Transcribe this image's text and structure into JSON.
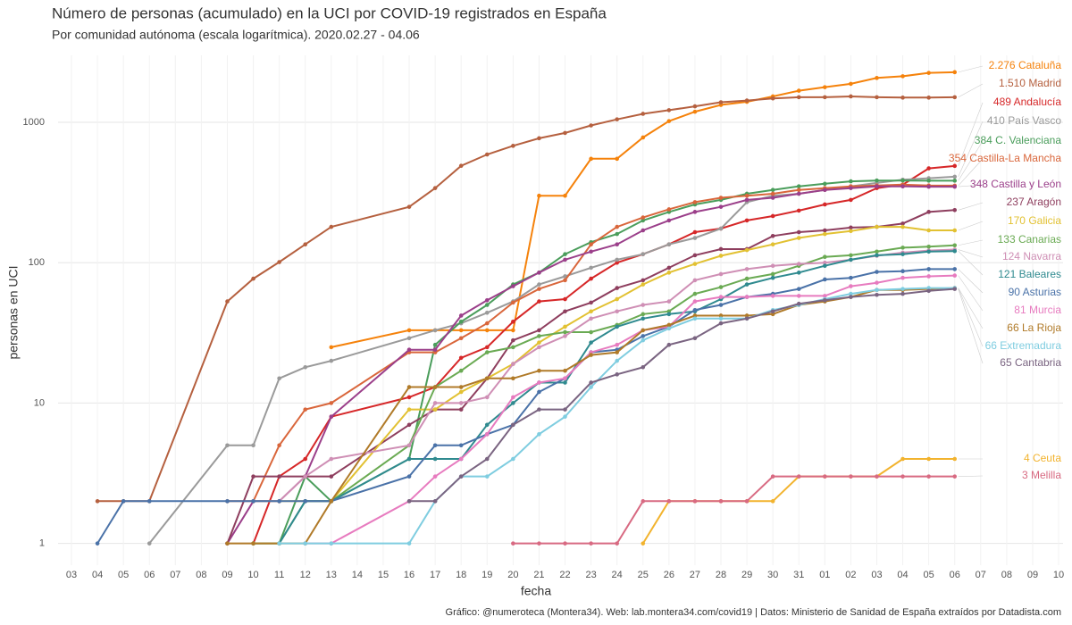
{
  "chart_data": {
    "type": "line",
    "title": "Número de personas (acumulado) en la UCI por COVID-19 registrados en España",
    "subtitle": "Por comunidad autónoma (escala logarítmica). 2020.02.27 - 04.06",
    "x_label": "fecha",
    "y_label": "personas en UCI",
    "caption": "Gráfico: @numeroteca (Montera34). Web: lab.montera34.com/covid19 | Datos: Ministerio de Sanidad de España extraídos por Datadista.com",
    "log_scale": true,
    "grid": true,
    "ylim": [
      0.7,
      3000
    ],
    "yticks": [
      1,
      10,
      100,
      1000
    ],
    "categories": [
      "03",
      "04",
      "05",
      "06",
      "07",
      "08",
      "09",
      "10",
      "11",
      "12",
      "13",
      "14",
      "15",
      "16",
      "17",
      "18",
      "19",
      "20",
      "21",
      "22",
      "23",
      "24",
      "25",
      "26",
      "27",
      "28",
      "29",
      "30",
      "31",
      "01",
      "02",
      "03",
      "04",
      "05",
      "06",
      "07",
      "08",
      "09",
      "10"
    ],
    "x": [
      "04",
      "05",
      "06",
      "09",
      "10",
      "11",
      "12",
      "13",
      "16",
      "17",
      "18",
      "19",
      "20",
      "21",
      "22",
      "23",
      "24",
      "25",
      "26",
      "27",
      "28",
      "29",
      "30",
      "31",
      "01",
      "02",
      "03",
      "04",
      "05",
      "06"
    ],
    "series": [
      {
        "name": "Cataluña",
        "color": "#f5820b",
        "end_label": "2.276",
        "values": [
          null,
          null,
          null,
          null,
          null,
          null,
          null,
          25,
          33,
          33,
          33,
          33,
          33,
          300,
          300,
          550,
          550,
          780,
          1020,
          1190,
          1330,
          1400,
          1530,
          1680,
          1780,
          1880,
          2070,
          2130,
          2250,
          2276
        ]
      },
      {
        "name": "Madrid",
        "color": "#b5603f",
        "end_label": "1.510",
        "values": [
          2,
          2,
          2,
          53,
          77,
          101,
          135,
          180,
          250,
          340,
          490,
          590,
          680,
          770,
          840,
          950,
          1050,
          1150,
          1220,
          1300,
          1390,
          1430,
          1480,
          1510,
          1510,
          1530,
          1510,
          1500,
          1500,
          1510
        ]
      },
      {
        "name": "Andalucía",
        "color": "#d62728",
        "end_label": "489",
        "values": [
          null,
          null,
          null,
          null,
          1,
          3,
          4,
          8,
          11,
          13,
          21,
          25,
          38,
          53,
          55,
          77,
          100,
          115,
          135,
          165,
          175,
          200,
          215,
          235,
          260,
          280,
          340,
          360,
          470,
          489
        ]
      },
      {
        "name": "País Vasco",
        "color": "#9a9a9a",
        "end_label": "410",
        "values": [
          null,
          null,
          1,
          5,
          5,
          15,
          18,
          20,
          29,
          33,
          37,
          44,
          53,
          70,
          80,
          92,
          105,
          115,
          135,
          150,
          175,
          270,
          300,
          310,
          330,
          350,
          370,
          390,
          400,
          410
        ]
      },
      {
        "name": "C. Valenciana",
        "color": "#4a9d5b",
        "end_label": "384",
        "values": [
          null,
          null,
          null,
          null,
          1,
          1,
          3,
          2,
          4,
          26,
          38,
          50,
          70,
          85,
          115,
          140,
          160,
          200,
          230,
          260,
          280,
          310,
          330,
          350,
          365,
          380,
          385,
          385,
          384,
          384
        ]
      },
      {
        "name": "Castilla-La Mancha",
        "color": "#d9663b",
        "end_label": "354",
        "values": [
          null,
          null,
          null,
          2,
          2,
          5,
          9,
          10,
          23,
          23,
          29,
          37,
          52,
          65,
          75,
          135,
          180,
          210,
          240,
          270,
          290,
          300,
          310,
          330,
          340,
          350,
          355,
          360,
          355,
          354
        ]
      },
      {
        "name": "Castilla y León",
        "color": "#9b3f8a",
        "end_label": "348",
        "values": [
          null,
          null,
          null,
          1,
          2,
          2,
          3,
          8,
          24,
          24,
          42,
          54,
          68,
          85,
          105,
          120,
          135,
          170,
          200,
          230,
          250,
          280,
          290,
          310,
          330,
          340,
          350,
          350,
          348,
          348
        ]
      },
      {
        "name": "Aragón",
        "color": "#8e3e5e",
        "end_label": "237",
        "values": [
          null,
          null,
          null,
          1,
          3,
          3,
          3,
          3,
          7,
          9,
          9,
          15,
          28,
          33,
          45,
          52,
          66,
          75,
          92,
          113,
          125,
          125,
          155,
          165,
          170,
          178,
          180,
          190,
          230,
          237
        ]
      },
      {
        "name": "Galicia",
        "color": "#e2c132",
        "end_label": "170",
        "values": [
          null,
          null,
          null,
          null,
          2,
          2,
          2,
          2,
          9,
          9,
          12,
          15,
          19,
          27,
          35,
          45,
          55,
          70,
          85,
          98,
          112,
          123,
          135,
          150,
          160,
          168,
          180,
          180,
          170,
          170
        ]
      },
      {
        "name": "Canarias",
        "color": "#6aaa53",
        "end_label": "133",
        "values": [
          null,
          null,
          null,
          null,
          1,
          1,
          2,
          2,
          5,
          13,
          17,
          23,
          25,
          30,
          32,
          32,
          36,
          43,
          45,
          60,
          67,
          77,
          83,
          95,
          110,
          113,
          120,
          128,
          130,
          133
        ]
      },
      {
        "name": "Navarra",
        "color": "#cf8fb5",
        "end_label": "124",
        "values": [
          null,
          null,
          null,
          null,
          2,
          2,
          3,
          4,
          5,
          10,
          10,
          11,
          19,
          25,
          30,
          40,
          45,
          50,
          53,
          75,
          83,
          90,
          95,
          98,
          100,
          105,
          112,
          118,
          122,
          124
        ]
      },
      {
        "name": "Baleares",
        "color": "#2f8a8f",
        "end_label": "121",
        "values": [
          null,
          null,
          null,
          null,
          null,
          1,
          2,
          2,
          4,
          4,
          4,
          7,
          10,
          14,
          14,
          27,
          35,
          40,
          43,
          45,
          55,
          70,
          78,
          85,
          95,
          105,
          113,
          115,
          120,
          121
        ]
      },
      {
        "name": "Asturias",
        "color": "#4a72a8",
        "end_label": "90",
        "values": [
          1,
          2,
          2,
          2,
          2,
          2,
          2,
          2,
          3,
          5,
          5,
          6,
          7,
          12,
          15,
          23,
          24,
          30,
          35,
          46,
          50,
          57,
          60,
          65,
          76,
          78,
          86,
          87,
          90,
          90
        ]
      },
      {
        "name": "Murcia",
        "color": "#e77bbf",
        "end_label": "81",
        "values": [
          null,
          null,
          null,
          null,
          null,
          null,
          1,
          1,
          2,
          3,
          4,
          6,
          11,
          14,
          15,
          23,
          26,
          33,
          35,
          53,
          57,
          57,
          58,
          58,
          58,
          68,
          72,
          78,
          80,
          81
        ]
      },
      {
        "name": "La Rioja",
        "color": "#b07a28",
        "end_label": "66",
        "values": [
          null,
          null,
          null,
          1,
          1,
          1,
          1,
          2,
          13,
          13,
          13,
          15,
          15,
          17,
          17,
          22,
          23,
          33,
          36,
          42,
          42,
          42,
          43,
          50,
          53,
          57,
          64,
          64,
          65,
          66
        ]
      },
      {
        "name": "Extremadura",
        "color": "#7fcde0",
        "end_label": "66",
        "values": [
          null,
          null,
          null,
          null,
          null,
          1,
          1,
          1,
          1,
          2,
          3,
          3,
          4,
          6,
          8,
          13,
          20,
          28,
          34,
          40,
          40,
          40,
          46,
          50,
          55,
          60,
          64,
          65,
          66,
          66
        ]
      },
      {
        "name": "Cantabria",
        "color": "#7a6481",
        "end_label": "65",
        "values": [
          null,
          null,
          null,
          null,
          null,
          null,
          null,
          null,
          2,
          2,
          3,
          4,
          7,
          9,
          9,
          14,
          16,
          18,
          26,
          29,
          37,
          40,
          45,
          51,
          54,
          57,
          59,
          60,
          63,
          65
        ]
      },
      {
        "name": "Ceuta",
        "color": "#f2b32e",
        "end_label": "4",
        "values": [
          null,
          null,
          null,
          null,
          null,
          null,
          null,
          null,
          null,
          null,
          null,
          null,
          null,
          null,
          null,
          null,
          null,
          1,
          2,
          2,
          2,
          2,
          2,
          3,
          3,
          3,
          3,
          4,
          4,
          4
        ]
      },
      {
        "name": "Melilla",
        "color": "#d86a82",
        "end_label": "3",
        "values": [
          null,
          null,
          null,
          null,
          null,
          null,
          null,
          null,
          null,
          null,
          null,
          null,
          1,
          1,
          1,
          1,
          1,
          2,
          2,
          2,
          2,
          2,
          3,
          3,
          3,
          3,
          3,
          3,
          3,
          3
        ]
      }
    ]
  }
}
